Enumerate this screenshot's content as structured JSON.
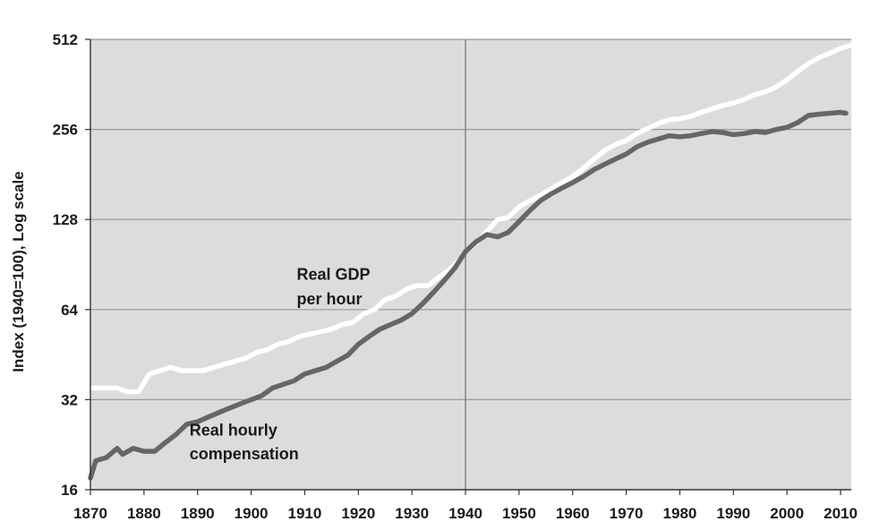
{
  "chart_data": {
    "type": "line",
    "title": "",
    "xlabel": "",
    "ylabel": "Index (1940=100), Log scale",
    "y_scale": "log2",
    "xlim": [
      1870,
      2012
    ],
    "ylim": [
      16,
      512
    ],
    "x_ticks": [
      "1870",
      "1880",
      "1890",
      "1900",
      "1910",
      "1920",
      "1930",
      "1940",
      "1950",
      "1960",
      "1970",
      "1980",
      "1990",
      "2000",
      "2010"
    ],
    "y_ticks": [
      "16",
      "32",
      "64",
      "128",
      "256",
      "512"
    ],
    "grid": "horizontal",
    "reference_line_x": 1940,
    "background": "#dcdcdc",
    "series": [
      {
        "label_lines": [
          "Real GDP",
          "per hour"
        ],
        "color": "#ffffff",
        "points": [
          [
            1870,
            35
          ],
          [
            1872,
            35
          ],
          [
            1875,
            35
          ],
          [
            1877,
            34
          ],
          [
            1879,
            34
          ],
          [
            1881,
            39
          ],
          [
            1883,
            40
          ],
          [
            1885,
            41
          ],
          [
            1887,
            40
          ],
          [
            1889,
            40
          ],
          [
            1891,
            40
          ],
          [
            1893,
            41
          ],
          [
            1895,
            42
          ],
          [
            1897,
            43
          ],
          [
            1899,
            44
          ],
          [
            1901,
            46
          ],
          [
            1903,
            47
          ],
          [
            1905,
            49
          ],
          [
            1907,
            50
          ],
          [
            1909,
            52
          ],
          [
            1911,
            53
          ],
          [
            1913,
            54
          ],
          [
            1915,
            55
          ],
          [
            1917,
            57
          ],
          [
            1919,
            58
          ],
          [
            1921,
            62
          ],
          [
            1923,
            64
          ],
          [
            1925,
            69
          ],
          [
            1927,
            71
          ],
          [
            1929,
            75
          ],
          [
            1931,
            77
          ],
          [
            1933,
            77
          ],
          [
            1935,
            82
          ],
          [
            1937,
            87
          ],
          [
            1939,
            94
          ],
          [
            1940,
            100
          ],
          [
            1942,
            107
          ],
          [
            1944,
            117
          ],
          [
            1946,
            128
          ],
          [
            1948,
            130
          ],
          [
            1950,
            141
          ],
          [
            1952,
            148
          ],
          [
            1954,
            154
          ],
          [
            1956,
            162
          ],
          [
            1958,
            170
          ],
          [
            1960,
            178
          ],
          [
            1962,
            190
          ],
          [
            1964,
            204
          ],
          [
            1966,
            218
          ],
          [
            1968,
            228
          ],
          [
            1970,
            235
          ],
          [
            1972,
            248
          ],
          [
            1974,
            258
          ],
          [
            1976,
            268
          ],
          [
            1978,
            276
          ],
          [
            1980,
            278
          ],
          [
            1982,
            283
          ],
          [
            1984,
            292
          ],
          [
            1986,
            300
          ],
          [
            1988,
            308
          ],
          [
            1990,
            314
          ],
          [
            1992,
            322
          ],
          [
            1994,
            335
          ],
          [
            1996,
            342
          ],
          [
            1998,
            355
          ],
          [
            2000,
            375
          ],
          [
            2002,
            400
          ],
          [
            2004,
            425
          ],
          [
            2006,
            445
          ],
          [
            2008,
            460
          ],
          [
            2010,
            478
          ],
          [
            2012,
            490
          ]
        ]
      },
      {
        "label_lines": [
          "Real hourly",
          "compensation"
        ],
        "color": "#666666",
        "points": [
          [
            1870,
            17.5
          ],
          [
            1871,
            20
          ],
          [
            1873,
            20.5
          ],
          [
            1875,
            22
          ],
          [
            1876,
            21
          ],
          [
            1878,
            22
          ],
          [
            1880,
            21.5
          ],
          [
            1882,
            21.5
          ],
          [
            1884,
            23
          ],
          [
            1886,
            24.5
          ],
          [
            1888,
            26.5
          ],
          [
            1890,
            27
          ],
          [
            1892,
            28
          ],
          [
            1894,
            29
          ],
          [
            1896,
            30
          ],
          [
            1898,
            31
          ],
          [
            1900,
            32
          ],
          [
            1902,
            33
          ],
          [
            1904,
            35
          ],
          [
            1906,
            36
          ],
          [
            1908,
            37
          ],
          [
            1910,
            39
          ],
          [
            1912,
            40
          ],
          [
            1914,
            41
          ],
          [
            1916,
            43
          ],
          [
            1918,
            45
          ],
          [
            1920,
            49
          ],
          [
            1922,
            52
          ],
          [
            1924,
            55
          ],
          [
            1926,
            57
          ],
          [
            1928,
            59
          ],
          [
            1930,
            62
          ],
          [
            1932,
            67
          ],
          [
            1934,
            73
          ],
          [
            1936,
            80
          ],
          [
            1938,
            88
          ],
          [
            1940,
            100
          ],
          [
            1942,
            108
          ],
          [
            1944,
            114
          ],
          [
            1946,
            112
          ],
          [
            1948,
            116
          ],
          [
            1950,
            126
          ],
          [
            1952,
            137
          ],
          [
            1954,
            148
          ],
          [
            1956,
            156
          ],
          [
            1958,
            163
          ],
          [
            1960,
            170
          ],
          [
            1962,
            178
          ],
          [
            1964,
            188
          ],
          [
            1966,
            196
          ],
          [
            1968,
            204
          ],
          [
            1970,
            212
          ],
          [
            1972,
            224
          ],
          [
            1974,
            232
          ],
          [
            1976,
            238
          ],
          [
            1978,
            244
          ],
          [
            1980,
            242
          ],
          [
            1982,
            244
          ],
          [
            1984,
            248
          ],
          [
            1986,
            252
          ],
          [
            1988,
            250
          ],
          [
            1990,
            246
          ],
          [
            1992,
            248
          ],
          [
            1994,
            252
          ],
          [
            1996,
            250
          ],
          [
            1998,
            256
          ],
          [
            2000,
            260
          ],
          [
            2002,
            270
          ],
          [
            2004,
            285
          ],
          [
            2006,
            288
          ],
          [
            2008,
            290
          ],
          [
            2010,
            292
          ],
          [
            2011,
            290
          ]
        ]
      }
    ]
  }
}
